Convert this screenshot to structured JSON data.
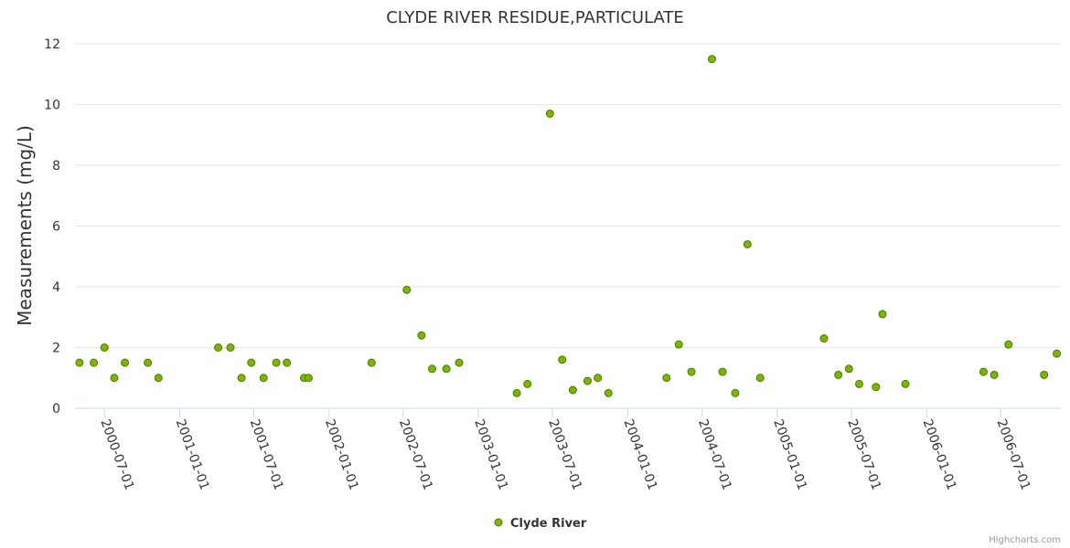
{
  "chart_data": {
    "type": "scatter",
    "title": "CLYDE RIVER RESIDUE,PARTICULATE",
    "xlabel": "",
    "ylabel": "Measurements (mg/L)",
    "ylim": [
      0,
      12
    ],
    "yticks": [
      0,
      2,
      4,
      6,
      8,
      10,
      12
    ],
    "xticks": [
      "2000-07-01",
      "2001-01-01",
      "2001-07-01",
      "2002-01-01",
      "2002-07-01",
      "2003-01-01",
      "2003-07-01",
      "2004-01-01",
      "2004-07-01",
      "2005-01-01",
      "2005-07-01",
      "2006-01-01",
      "2006-07-01"
    ],
    "xlim": [
      "2000-04-20",
      "2006-11-25"
    ],
    "grid": "horizontal",
    "legend_position": "bottom-center",
    "series": [
      {
        "name": "Clyde River",
        "color": "#7cb500",
        "stroke": "#4a7a00",
        "points": [
          [
            "2000-05-01",
            1.5
          ],
          [
            "2000-06-05",
            1.5
          ],
          [
            "2000-07-01",
            2.0
          ],
          [
            "2000-07-25",
            1.0
          ],
          [
            "2000-08-20",
            1.5
          ],
          [
            "2000-10-15",
            1.5
          ],
          [
            "2000-11-10",
            1.0
          ],
          [
            "2001-04-05",
            2.0
          ],
          [
            "2001-05-05",
            2.0
          ],
          [
            "2001-06-01",
            1.0
          ],
          [
            "2001-06-25",
            1.5
          ],
          [
            "2001-07-25",
            1.0
          ],
          [
            "2001-08-25",
            1.5
          ],
          [
            "2001-09-20",
            1.5
          ],
          [
            "2001-11-01",
            1.0
          ],
          [
            "2001-11-12",
            1.0
          ],
          [
            "2002-04-15",
            1.5
          ],
          [
            "2002-07-10",
            3.9
          ],
          [
            "2002-08-15",
            2.4
          ],
          [
            "2002-09-10",
            1.3
          ],
          [
            "2002-10-15",
            1.3
          ],
          [
            "2002-11-15",
            1.5
          ],
          [
            "2003-04-05",
            0.5
          ],
          [
            "2003-05-01",
            0.8
          ],
          [
            "2003-06-25",
            9.7
          ],
          [
            "2003-07-25",
            1.6
          ],
          [
            "2003-08-20",
            0.6
          ],
          [
            "2003-09-25",
            0.9
          ],
          [
            "2003-10-20",
            1.0
          ],
          [
            "2003-11-15",
            0.5
          ],
          [
            "2004-04-05",
            1.0
          ],
          [
            "2004-05-05",
            2.1
          ],
          [
            "2004-06-05",
            1.2
          ],
          [
            "2004-07-25",
            11.5
          ],
          [
            "2004-08-20",
            1.2
          ],
          [
            "2004-09-20",
            0.5
          ],
          [
            "2004-10-20",
            5.4
          ],
          [
            "2004-11-20",
            1.0
          ],
          [
            "2005-04-25",
            2.3
          ],
          [
            "2005-05-30",
            1.1
          ],
          [
            "2005-06-25",
            1.3
          ],
          [
            "2005-07-20",
            0.8
          ],
          [
            "2005-08-30",
            0.7
          ],
          [
            "2005-09-15",
            3.1
          ],
          [
            "2005-11-10",
            0.8
          ],
          [
            "2006-05-20",
            1.2
          ],
          [
            "2006-06-15",
            1.1
          ],
          [
            "2006-07-20",
            2.1
          ],
          [
            "2006-10-15",
            1.1
          ],
          [
            "2006-11-15",
            1.8
          ]
        ]
      }
    ]
  },
  "legend": {
    "label": "Clyde River"
  },
  "credits": "Highcharts.com"
}
